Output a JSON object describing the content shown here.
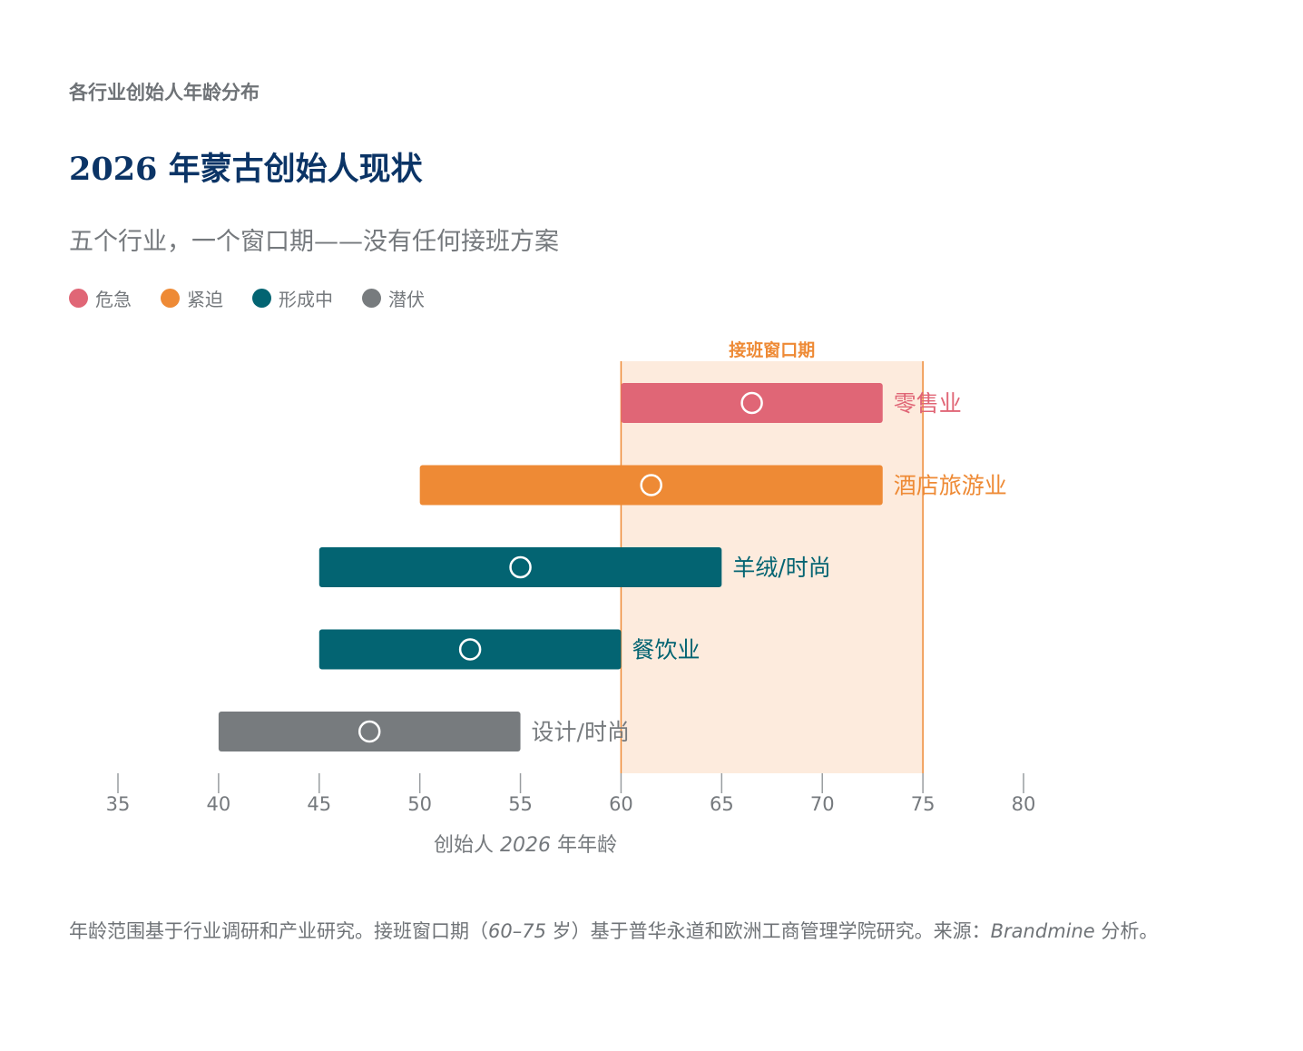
{
  "kicker": "各行业创始人年龄分布",
  "title": "2026 年蒙古创始人现状",
  "subtitle": "五个行业，一个窗口期——没有任何接班方案",
  "legend": [
    {
      "label": "危急",
      "color": "#e06676"
    },
    {
      "label": "紧迫",
      "color": "#ee8a35"
    },
    {
      "label": "形成中",
      "color": "#036472"
    },
    {
      "label": "潜伏",
      "color": "#777b7e"
    }
  ],
  "footnote": {
    "part1": "年龄范围基于行业调研和产业研究。接班窗口期（",
    "range": "60–75",
    "part2": " 岁）基于普华永道和欧洲工商管理学院研究。来源：",
    "source": "Brandmine",
    "part3": " 分析。"
  },
  "chart_data": {
    "type": "range-bar",
    "x_axis": {
      "min": 35,
      "max": 80,
      "ticks": [
        35,
        40,
        45,
        50,
        55,
        60,
        65,
        70,
        75,
        80
      ],
      "label_pre": "创始人 ",
      "label_year": "2026",
      "label_post": " 年年龄"
    },
    "window": {
      "label": "接班窗口期",
      "start": 60,
      "end": 75,
      "color": "#ee8a35",
      "fill": "#fdebdd"
    },
    "series": [
      {
        "name": "零售业",
        "start": 60,
        "end": 73,
        "median": 66.5,
        "status": "危急",
        "color": "#e06676"
      },
      {
        "name": "酒店旅游业",
        "start": 50,
        "end": 73,
        "median": 61.5,
        "status": "紧迫",
        "color": "#ee8a35"
      },
      {
        "name": "羊绒/时尚",
        "start": 45,
        "end": 65,
        "median": 55,
        "status": "形成中",
        "color": "#036472"
      },
      {
        "name": "餐饮业",
        "start": 45,
        "end": 60,
        "median": 52.5,
        "status": "形成中",
        "color": "#036472"
      },
      {
        "name": "设计/时尚",
        "start": 40,
        "end": 55,
        "median": 47.5,
        "status": "潜伏",
        "color": "#777b7e"
      }
    ]
  }
}
